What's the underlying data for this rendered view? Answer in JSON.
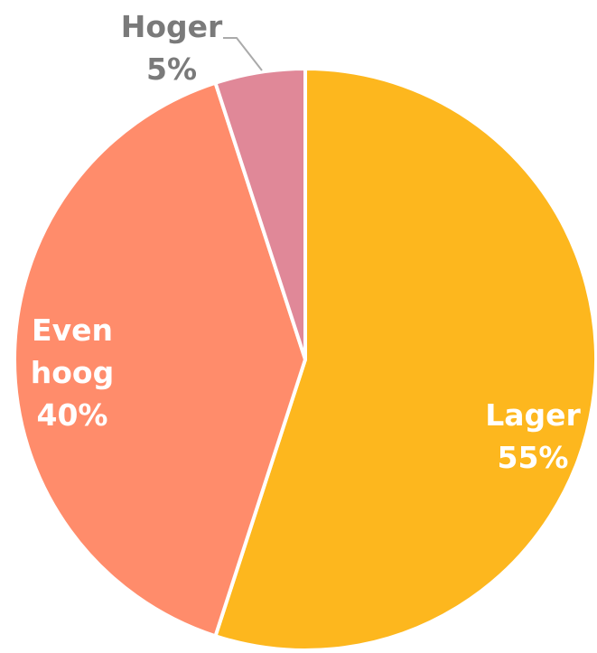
{
  "chart_data": {
    "type": "pie",
    "categories": [
      "Lager",
      "Even hoog",
      "Hoger"
    ],
    "values": [
      55,
      40,
      5
    ],
    "value_labels": [
      "55%",
      "40%",
      "5%"
    ],
    "colors": [
      "#fdb71e",
      "#ff8c6b",
      "#e08898"
    ]
  }
}
